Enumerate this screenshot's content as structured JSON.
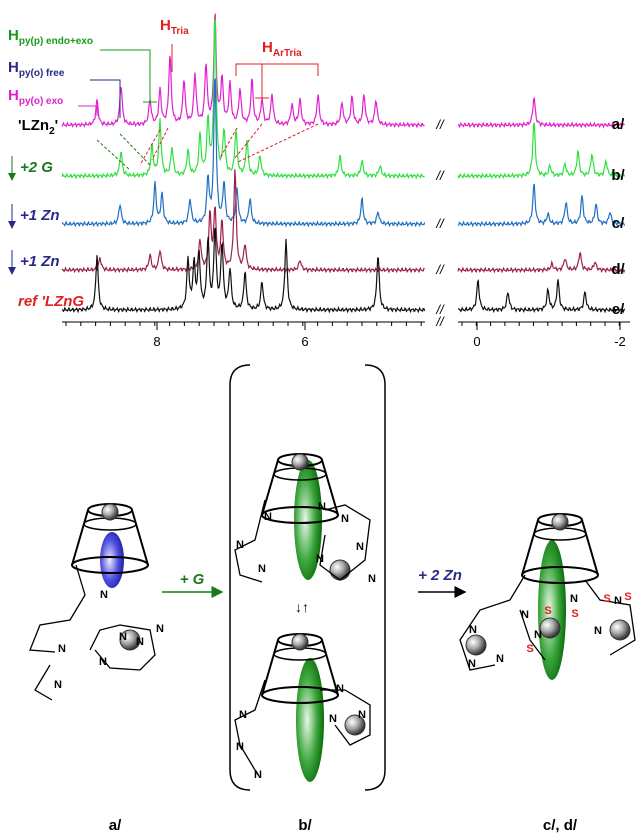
{
  "spectra": {
    "annotations": {
      "h_py_p": {
        "main": "H",
        "sub": "py(p) endo+exo"
      },
      "h_py_o_free": {
        "main": "H",
        "sub": "py(o) free"
      },
      "h_py_o_exo": {
        "main": "H",
        "sub": "py(o) exo"
      },
      "h_tria": {
        "main": "H",
        "sub": "Tria"
      },
      "h_artria": {
        "main": "H",
        "sub": "ArTria"
      }
    },
    "traces": [
      {
        "name": {
          "main": "'LZn",
          "sub": "2",
          "tail": "'"
        },
        "label": "a/"
      },
      {
        "name": "+2 G",
        "label": "b/"
      },
      {
        "name": "+1 Zn",
        "label": "c/"
      },
      {
        "name": "+1 Zn",
        "label": "d/"
      },
      {
        "name": "ref 'LZnG",
        "label": "e/"
      }
    ],
    "break_mark": "//",
    "axis_ticks": [
      8,
      6,
      0,
      -2
    ]
  },
  "diagram": {
    "panels": [
      {
        "label": "a/",
        "atoms": [
          "N",
          "N",
          "N",
          "N",
          "N",
          "N",
          "N"
        ]
      },
      {
        "label": "b/",
        "atoms_top": [
          "N",
          "N",
          "N",
          "N",
          "N",
          "N",
          "N",
          "N"
        ],
        "atoms_bottom": [
          "N",
          "N",
          "N",
          "N",
          "N",
          "N"
        ]
      },
      {
        "label": "c/, d/",
        "atoms": [
          "N",
          "N",
          "N",
          "N",
          "N",
          "N",
          "N",
          "N",
          "S",
          "S",
          "S",
          "S",
          "S"
        ]
      }
    ],
    "arrow_1": "+ G",
    "arrow_2": "+ 2 Zn",
    "equilibrium": "↓↑"
  }
}
